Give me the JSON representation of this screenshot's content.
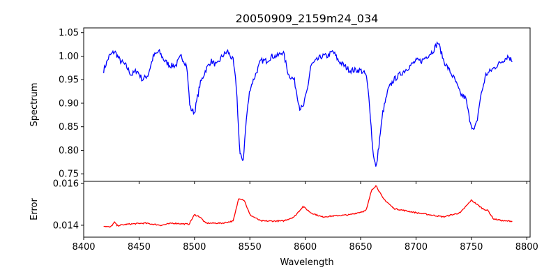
{
  "chart_data": [
    {
      "type": "line",
      "title": "20050909_2159m24_034",
      "xlabel": "",
      "ylabel": "Spectrum",
      "xlim": [
        8400,
        8803
      ],
      "ylim": [
        0.734,
        1.06
      ],
      "xticks": [
        8400,
        8450,
        8500,
        8550,
        8600,
        8650,
        8700,
        8750,
        8800
      ],
      "yticks": [
        "0.75",
        "0.80",
        "0.85",
        "0.90",
        "0.95",
        "1.00",
        "1.05"
      ],
      "grid": false,
      "color": "#0000ff",
      "series": [
        {
          "name": "Spectrum",
          "x": [
            8418,
            8423,
            8428,
            8433,
            8438,
            8443,
            8448,
            8453,
            8458,
            8463,
            8468,
            8473,
            8478,
            8483,
            8488,
            8493,
            8496,
            8500,
            8505,
            8510,
            8515,
            8520,
            8525,
            8530,
            8535,
            8538,
            8541,
            8544,
            8547,
            8550,
            8555,
            8560,
            8565,
            8570,
            8575,
            8580,
            8585,
            8590,
            8595,
            8598,
            8602,
            8605,
            8610,
            8615,
            8620,
            8625,
            8630,
            8635,
            8640,
            8645,
            8650,
            8655,
            8658,
            8661,
            8664,
            8667,
            8670,
            8675,
            8680,
            8685,
            8690,
            8695,
            8700,
            8705,
            8710,
            8715,
            8720,
            8725,
            8730,
            8735,
            8740,
            8745,
            8748,
            8752,
            8755,
            8758,
            8763,
            8768,
            8773,
            8778,
            8783,
            8787
          ],
          "y": [
            0.97,
            1.0,
            1.01,
            0.99,
            0.98,
            0.96,
            0.97,
            0.95,
            0.96,
            1.0,
            1.01,
            0.99,
            0.98,
            0.98,
            1.0,
            0.98,
            0.89,
            0.88,
            0.94,
            0.97,
            0.99,
            0.98,
            1.0,
            1.01,
            0.99,
            0.93,
            0.79,
            0.78,
            0.87,
            0.93,
            0.96,
            0.99,
            0.99,
            1.0,
            1.0,
            1.01,
            0.96,
            0.95,
            0.89,
            0.89,
            0.93,
            0.98,
            0.99,
            1.0,
            1.0,
            1.01,
            0.99,
            0.98,
            0.97,
            0.97,
            0.97,
            0.96,
            0.9,
            0.8,
            0.76,
            0.82,
            0.88,
            0.93,
            0.95,
            0.96,
            0.97,
            0.98,
            0.99,
            0.99,
            1.0,
            1.01,
            1.03,
            0.99,
            0.97,
            0.95,
            0.92,
            0.91,
            0.87,
            0.84,
            0.86,
            0.91,
            0.96,
            0.97,
            0.98,
            0.99,
            1.0,
            0.99
          ]
        }
      ]
    },
    {
      "type": "line",
      "title": "",
      "xlabel": "Wavelength",
      "ylabel": "Error",
      "xlim": [
        8400,
        8803
      ],
      "ylim": [
        0.01343,
        0.0161
      ],
      "xticks": [
        8400,
        8450,
        8500,
        8550,
        8600,
        8650,
        8700,
        8750,
        8800
      ],
      "yticks": [
        "0.014",
        "0.016"
      ],
      "grid": false,
      "color": "#ff0000",
      "series": [
        {
          "name": "Error",
          "x": [
            8418,
            8424,
            8428,
            8430,
            8440,
            8455,
            8470,
            8480,
            8495,
            8500,
            8505,
            8510,
            8525,
            8535,
            8540,
            8545,
            8550,
            8560,
            8580,
            8590,
            8598,
            8605,
            8615,
            8640,
            8655,
            8660,
            8664,
            8670,
            8680,
            8700,
            8725,
            8740,
            8750,
            8760,
            8765,
            8770,
            8780,
            8787
          ],
          "y": [
            0.01397,
            0.0139,
            0.01415,
            0.01398,
            0.01405,
            0.0141,
            0.014,
            0.0141,
            0.01405,
            0.0145,
            0.0144,
            0.0141,
            0.0141,
            0.0142,
            0.0153,
            0.0152,
            0.0145,
            0.0142,
            0.0142,
            0.0144,
            0.0149,
            0.0146,
            0.0144,
            0.0145,
            0.0147,
            0.0157,
            0.0159,
            0.0153,
            0.0148,
            0.0146,
            0.0144,
            0.0146,
            0.0152,
            0.0148,
            0.0147,
            0.0143,
            0.0142,
            0.0142
          ]
        }
      ]
    }
  ]
}
